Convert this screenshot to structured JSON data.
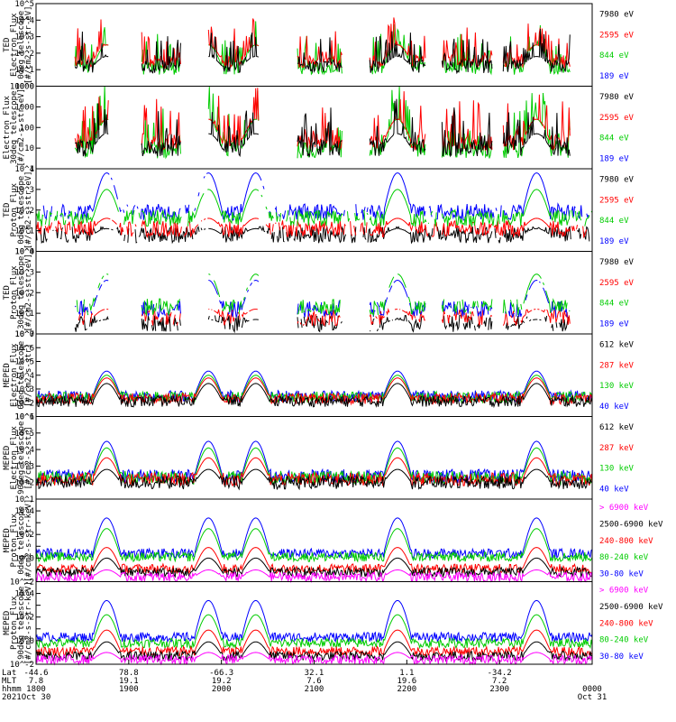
{
  "chart_data": {
    "type": "line",
    "x_axis": {
      "rows": [
        "Lat",
        "MLT",
        "hhmm",
        "2021"
      ],
      "ticks": [
        {
          "lat": "-44.6",
          "mlt": "7.8",
          "hhmm": "1800",
          "date": "Oct 30"
        },
        {
          "lat": "78.8",
          "mlt": "19.1",
          "hhmm": "1900",
          "date": ""
        },
        {
          "lat": "-66.3",
          "mlt": "19.2",
          "hhmm": "2000",
          "date": ""
        },
        {
          "lat": "32.1",
          "mlt": "7.6",
          "hhmm": "2100",
          "date": ""
        },
        {
          "lat": "1.1",
          "mlt": "19.6",
          "hhmm": "2200",
          "date": ""
        },
        {
          "lat": "-34.2",
          "mlt": "7.2",
          "hhmm": "2300",
          "date": ""
        },
        {
          "lat": "",
          "mlt": "",
          "hhmm": "0000",
          "date": "Oct 31"
        }
      ]
    },
    "panels": [
      {
        "id": "ted-e-0",
        "ylabel": [
          "TED",
          "Electron Flux",
          "0deg telescope",
          "[#/cm2-s-str-eV]"
        ],
        "log": true,
        "ylim_exp": [
          0,
          5
        ],
        "tick_style": "pow",
        "legend": [
          {
            "label": "7980 eV",
            "color": "#000000"
          },
          {
            "label": "2595 eV",
            "color": "#ff0000"
          },
          {
            "label": "844 eV",
            "color": "#00cc00"
          },
          {
            "label": "189 eV",
            "color": "#0000ff"
          }
        ],
        "style": "sparse",
        "draw_order": [
          2,
          1,
          0
        ],
        "level_exp": [
          1.2,
          1.5,
          1.1
        ],
        "bump_heights": [
          0.6,
          1.0,
          1.4
        ]
      },
      {
        "id": "ted-e-30",
        "ylabel": [
          "Electron Flux",
          "30deg telescope",
          "[#/cm2-s-str-eV]"
        ],
        "log": true,
        "ylim_exp": [
          0,
          4
        ],
        "tick_style": "plain",
        "legend": [
          {
            "label": "7980 eV",
            "color": "#000000"
          },
          {
            "label": "2595 eV",
            "color": "#ff0000"
          },
          {
            "label": "844 eV",
            "color": "#00cc00"
          },
          {
            "label": "189 eV",
            "color": "#0000ff"
          }
        ],
        "style": "sparse",
        "draw_order": [
          2,
          1,
          0
        ],
        "level_exp": [
          1.0,
          1.3,
          0.9
        ],
        "bump_heights": [
          0.7,
          1.1,
          1.5
        ]
      },
      {
        "id": "ted-p-0",
        "ylabel": [
          "TED",
          "Proton Flux",
          "0deg telescope",
          "[#/cm2-s-str-eV]"
        ],
        "log": true,
        "ylim_exp": [
          0,
          4
        ],
        "tick_style": "pow",
        "legend": [
          {
            "label": "7980 eV",
            "color": "#000000"
          },
          {
            "label": "2595 eV",
            "color": "#ff0000"
          },
          {
            "label": "844 eV",
            "color": "#00cc00"
          },
          {
            "label": "189 eV",
            "color": "#0000ff"
          }
        ],
        "style": "dense",
        "draw_order": [
          0,
          1,
          3,
          2
        ],
        "level_exp": [
          0.8,
          1.1,
          1.6,
          1.9
        ],
        "bump_heights": [
          0.3,
          0.5,
          1.4,
          1.9
        ]
      },
      {
        "id": "ted-p-30",
        "ylabel": [
          "TED",
          "Proton Flux",
          "30deg telescope",
          "[#/cm2-s-str-eV]"
        ],
        "log": true,
        "ylim_exp": [
          0,
          4
        ],
        "tick_style": "pow",
        "legend": [
          {
            "label": "7980 eV",
            "color": "#000000"
          },
          {
            "label": "2595 eV",
            "color": "#ff0000"
          },
          {
            "label": "844 eV",
            "color": "#00cc00"
          },
          {
            "label": "189 eV",
            "color": "#0000ff"
          }
        ],
        "style": "gappy",
        "draw_order": [
          0,
          1,
          3,
          2
        ],
        "level_exp": [
          0.5,
          0.8,
          1.3,
          1.2
        ],
        "bump_heights": [
          0.2,
          0.4,
          1.6,
          1.4
        ]
      },
      {
        "id": "meped-e-0",
        "ylabel": [
          "MEPED",
          "Electron Flux",
          "0deg telescope",
          "[#/cm2-s-str]"
        ],
        "log": true,
        "ylim_exp": [
          1,
          7
        ],
        "tick_style": "pow",
        "legend": [
          {
            "label": "612 keV",
            "color": "#000000"
          },
          {
            "label": "287 keV",
            "color": "#ff0000"
          },
          {
            "label": "130 keV",
            "color": "#00cc00"
          },
          {
            "label": "40 keV",
            "color": "#0000ff"
          }
        ],
        "style": "floor",
        "draw_order": [
          3,
          2,
          1,
          0
        ],
        "level_exp": [
          2.1,
          2.3,
          2.4,
          2.5
        ],
        "bump_heights": [
          1.3,
          1.5,
          1.6,
          1.8
        ]
      },
      {
        "id": "meped-e-90",
        "ylabel": [
          "MEPED",
          "Electron Flux",
          "90deg telescope",
          "[#/cm2-s-str]"
        ],
        "log": true,
        "ylim_exp": [
          1,
          6
        ],
        "tick_style": "pow",
        "legend": [
          {
            "label": "612 keV",
            "color": "#000000"
          },
          {
            "label": "287 keV",
            "color": "#ff0000"
          },
          {
            "label": "130 keV",
            "color": "#00cc00"
          },
          {
            "label": "40 keV",
            "color": "#0000ff"
          }
        ],
        "style": "floor",
        "draw_order": [
          3,
          2,
          1,
          0
        ],
        "level_exp": [
          2.0,
          2.2,
          2.3,
          2.4
        ],
        "bump_heights": [
          0.8,
          1.3,
          1.8,
          2.1
        ]
      },
      {
        "id": "meped-p-0",
        "ylabel": [
          "MEPED",
          "Proton Flux",
          "0deg telescope",
          "[#/cm2-s-str-keV]"
        ],
        "log": true,
        "ylim_exp": [
          -2,
          5
        ],
        "tick_style": "pow_even",
        "legend": [
          {
            "label": "> 6900 keV",
            "color": "#ff00ff"
          },
          {
            "label": "2500-6900 keV",
            "color": "#000000"
          },
          {
            "label": "240-800 keV",
            "color": "#ff0000"
          },
          {
            "label": "80-240 keV",
            "color": "#00cc00"
          },
          {
            "label": "30-80 keV",
            "color": "#0000ff"
          }
        ],
        "style": "proton",
        "draw_order": [
          4,
          3,
          2,
          1,
          0
        ],
        "level_exp": [
          -1.6,
          -1.2,
          -0.9,
          0.1,
          0.4
        ],
        "bump_heights": [
          0.6,
          1.2,
          1.8,
          2.4,
          3.0
        ]
      },
      {
        "id": "meped-p-90",
        "ylabel": [
          "MEPED",
          "Proton Flux",
          "90deg telescope",
          "[#/cm2-s-str-keV]"
        ],
        "log": true,
        "ylim_exp": [
          -2,
          5
        ],
        "tick_style": "pow_even",
        "legend": [
          {
            "label": "> 6900 keV",
            "color": "#ff00ff"
          },
          {
            "label": "2500-6900 keV",
            "color": "#000000"
          },
          {
            "label": "240-800 keV",
            "color": "#ff0000"
          },
          {
            "label": "80-240 keV",
            "color": "#00cc00"
          },
          {
            "label": "30-80 keV",
            "color": "#0000ff"
          }
        ],
        "style": "proton",
        "draw_order": [
          4,
          3,
          2,
          1,
          0
        ],
        "level_exp": [
          -1.6,
          -1.3,
          -0.9,
          -0.2,
          0.3
        ],
        "bump_heights": [
          0.6,
          1.2,
          1.8,
          2.4,
          3.1
        ]
      }
    ]
  }
}
